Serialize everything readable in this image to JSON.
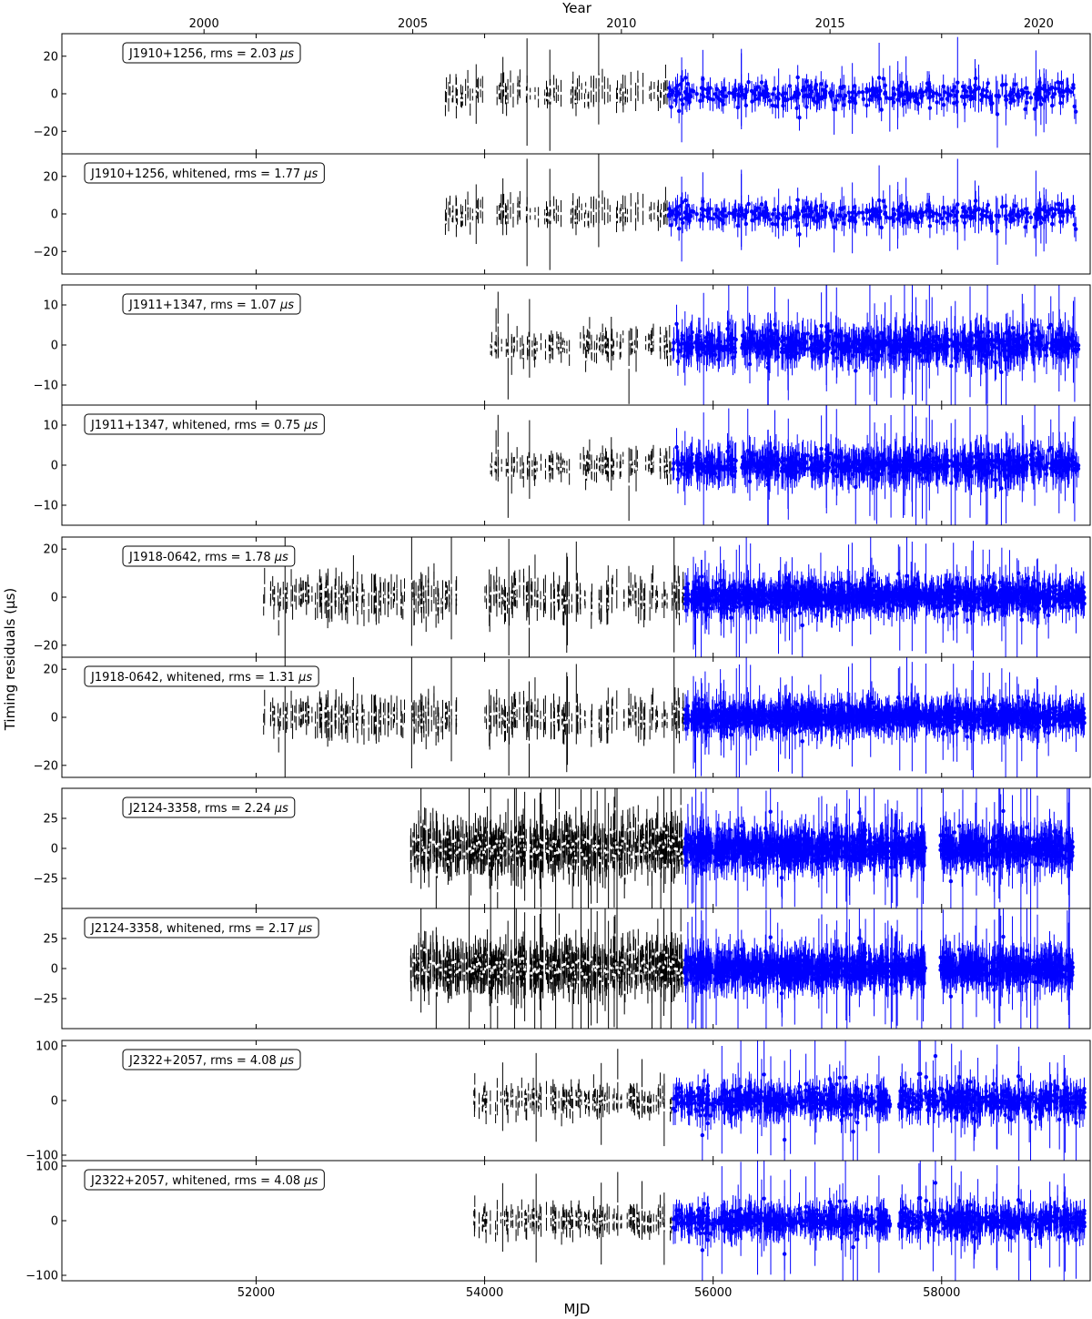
{
  "chart_data": {
    "type": "scatter",
    "xlabel": "MJD",
    "ylabel": "Timing residuals (μs)",
    "top_xlabel": "Year",
    "xlim": [
      50300,
      59300
    ],
    "x_ticks": [
      52000,
      54000,
      56000,
      58000
    ],
    "year_ticks": [
      {
        "label": "2000",
        "mjd": 51544
      },
      {
        "label": "2005",
        "mjd": 53371
      },
      {
        "label": "2010",
        "mjd": 55197
      },
      {
        "label": "2015",
        "mjd": 57023
      },
      {
        "label": "2020",
        "mjd": 58849
      }
    ],
    "colors": {
      "older_data": "#000000",
      "older_marker": "#ffffff",
      "recent_data": "#0000ff"
    },
    "pulsars": [
      {
        "name": "J1910+1256",
        "ylim": [
          -32,
          32
        ],
        "y_ticks": [
          -20,
          0,
          20
        ],
        "coverage_mjd": [
          53650,
          59200
        ],
        "recent_start_mjd": 55600,
        "mid_gap_mjd": [
          54030,
          54100
        ],
        "old_err": 6,
        "new_err": 5,
        "old_scatter": 3,
        "new_scatter": 3,
        "old_count": 110,
        "new_count": 420,
        "panels": [
          {
            "label": "J1910+1256, rms = 2.03 ",
            "unit": "μs",
            "rms": 2.03,
            "whitened": false
          },
          {
            "label": "J1910+1256, whitened, rms = 1.77 ",
            "unit": "μs",
            "rms": 1.77,
            "whitened": true
          }
        ]
      },
      {
        "name": "J1911+1347",
        "ylim": [
          -15,
          15
        ],
        "y_ticks": [
          -10,
          0,
          10
        ],
        "coverage_mjd": [
          54050,
          59200
        ],
        "recent_start_mjd": 55650,
        "mid_gap_mjd": [
          56200,
          56250
        ],
        "old_err": 2.5,
        "new_err": 3.5,
        "old_scatter": 1.2,
        "new_scatter": 1.5,
        "old_count": 120,
        "new_count": 900,
        "panels": [
          {
            "label": "J1911+1347, rms = 1.07 ",
            "unit": "μs",
            "rms": 1.07,
            "whitened": false
          },
          {
            "label": "J1911+1347, whitened, rms = 0.75 ",
            "unit": "μs",
            "rms": 0.75,
            "whitened": true
          }
        ]
      },
      {
        "name": "J1918-0642",
        "ylim": [
          -25,
          25
        ],
        "y_ticks": [
          -20,
          0,
          20
        ],
        "coverage_mjd": [
          52050,
          59250
        ],
        "recent_start_mjd": 55750,
        "mid_gap_mjd": [
          53780,
          53970
        ],
        "old_err": 6,
        "new_err": 5,
        "old_scatter": 3,
        "new_scatter": 2.5,
        "old_count": 300,
        "new_count": 1300,
        "panels": [
          {
            "label": "J1918-0642, rms = 1.78 ",
            "unit": "μs",
            "rms": 1.78,
            "whitened": false
          },
          {
            "label": "J1918-0642, whitened, rms = 1.31 ",
            "unit": "μs",
            "rms": 1.31,
            "whitened": true
          }
        ]
      },
      {
        "name": "J2124-3358",
        "ylim": [
          -50,
          50
        ],
        "y_ticks": [
          -25,
          0,
          25
        ],
        "coverage_mjd": [
          53350,
          59150
        ],
        "recent_start_mjd": 55750,
        "mid_gap_mjd": [
          57860,
          57990
        ],
        "old_err": 14,
        "new_err": 12,
        "old_scatter": 7,
        "new_scatter": 6,
        "old_count": 600,
        "new_count": 1400,
        "panels": [
          {
            "label": "J2124-3358, rms = 2.24 ",
            "unit": "μs",
            "rms": 2.24,
            "whitened": false
          },
          {
            "label": "J2124-3358, whitened, rms = 2.17 ",
            "unit": "μs",
            "rms": 2.17,
            "whitened": true
          }
        ]
      },
      {
        "name": "J2322+2057",
        "ylim": [
          -110,
          110
        ],
        "y_ticks": [
          -100,
          0,
          100
        ],
        "coverage_mjd": [
          53900,
          59250
        ],
        "recent_start_mjd": 55650,
        "mid_gap_mjd": [
          57550,
          57620
        ],
        "old_err": 20,
        "new_err": 22,
        "old_scatter": 8,
        "new_scatter": 12,
        "old_count": 150,
        "new_count": 900,
        "panels": [
          {
            "label": "J2322+2057, rms = 4.08 ",
            "unit": "μs",
            "rms": 4.08,
            "whitened": false
          },
          {
            "label": "J2322+2057, whitened, rms = 4.08 ",
            "unit": "μs",
            "rms": 4.08,
            "whitened": true
          }
        ]
      }
    ]
  }
}
